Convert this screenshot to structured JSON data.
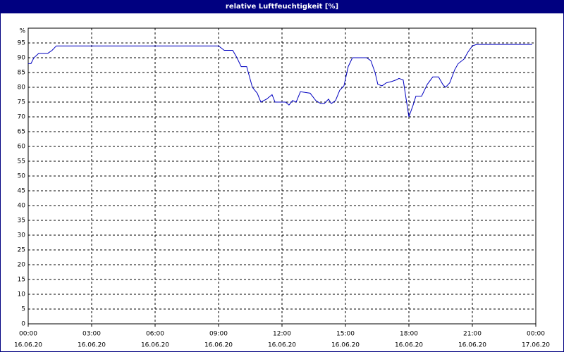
{
  "chart_data": {
    "type": "line",
    "title": "relative Luftfeuchtigkeit [%]",
    "ylabel": "%",
    "x": [
      0,
      0.13,
      0.27,
      0.5,
      0.93,
      1.13,
      1.33,
      9,
      9.27,
      9.67,
      9.87,
      10.07,
      10.33,
      10.6,
      10.83,
      11,
      11.27,
      11.53,
      11.67,
      12.17,
      12.33,
      12.5,
      12.67,
      12.87,
      13.33,
      13.6,
      13.83,
      14,
      14.2,
      14.33,
      14.53,
      14.73,
      14.93,
      15.13,
      15.33,
      16,
      16.2,
      16.4,
      16.53,
      16.73,
      16.93,
      17.2,
      17.4,
      17.53,
      17.73,
      18,
      18.2,
      18.33,
      18.6,
      18.87,
      19.13,
      19.4,
      19.6,
      19.73,
      19.93,
      20.17,
      20.33,
      20.6,
      20.8,
      21,
      21.2,
      23.83
    ],
    "series": [
      {
        "name": "relative Luftfeuchtigkeit",
        "color": "#0000c0",
        "values": [
          88,
          88,
          90,
          91.5,
          91.5,
          92.5,
          94,
          94,
          92.5,
          92.5,
          90,
          87,
          87,
          80,
          78,
          75,
          76,
          77.5,
          75,
          75,
          74,
          75.5,
          75,
          78.5,
          78,
          75.5,
          74.5,
          74.5,
          76,
          74.5,
          75.5,
          79,
          80.5,
          87,
          90,
          90,
          89,
          85,
          81,
          80.5,
          81.5,
          82,
          82.5,
          83,
          82.5,
          70,
          74,
          77,
          77,
          81,
          83.5,
          83.5,
          81,
          80,
          81.5,
          86,
          88,
          89.5,
          92,
          94,
          94.5,
          94.5
        ]
      }
    ],
    "xlim": [
      0,
      24
    ],
    "xticks": [
      {
        "value": 0,
        "label": "00:00",
        "date": "16.06.20"
      },
      {
        "value": 3,
        "label": "03:00",
        "date": "16.06.20"
      },
      {
        "value": 6,
        "label": "06:00",
        "date": "16.06.20"
      },
      {
        "value": 9,
        "label": "09:00",
        "date": "16.06.20"
      },
      {
        "value": 12,
        "label": "12:00",
        "date": "16.06.20"
      },
      {
        "value": 15,
        "label": "15:00",
        "date": "16.06.20"
      },
      {
        "value": 18,
        "label": "18:00",
        "date": "16.06.20"
      },
      {
        "value": 21,
        "label": "21:00",
        "date": "16.06.20"
      },
      {
        "value": 24,
        "label": "00:00",
        "date": "17.06.20"
      }
    ],
    "ylim": [
      0,
      100
    ],
    "yticks": [
      0,
      5,
      10,
      15,
      20,
      25,
      30,
      35,
      40,
      45,
      50,
      55,
      60,
      65,
      70,
      75,
      80,
      85,
      90,
      95
    ],
    "grid": true
  }
}
